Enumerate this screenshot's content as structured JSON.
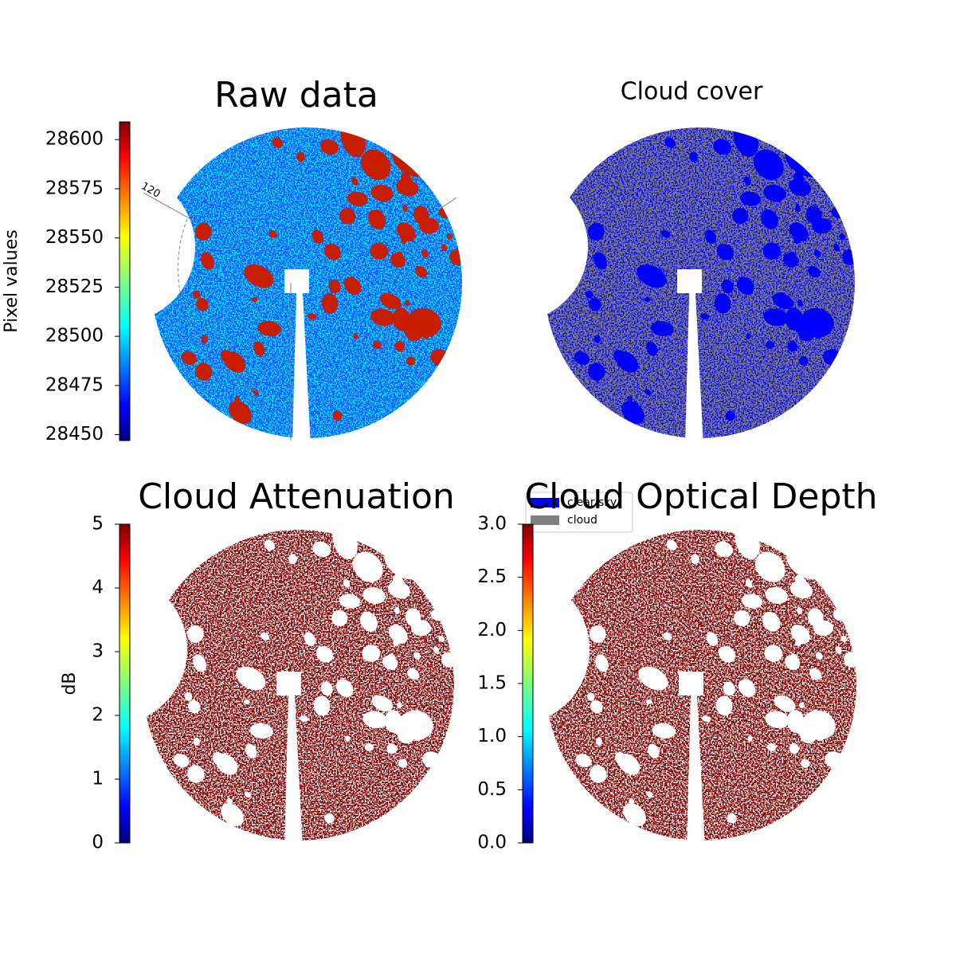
{
  "chart_data": [
    {
      "type": "image",
      "title": "Raw data",
      "annotations": [
        "120"
      ],
      "colorbar": {
        "label": "Pixel values",
        "ylim": [
          28447,
          28609
        ],
        "yticks": [
          28450,
          28475,
          28500,
          28525,
          28550,
          28575,
          28600
        ]
      }
    },
    {
      "type": "image",
      "title": "Cloud cover",
      "legend": {
        "entries": [
          {
            "name": "clear sky",
            "color": "#0000ff"
          },
          {
            "name": "cloud",
            "color": "#808080"
          }
        ]
      }
    },
    {
      "type": "image",
      "title": "Cloud Attenuation",
      "colorbar": {
        "label": "dB",
        "ylim": [
          0,
          5
        ],
        "yticks": [
          0,
          1,
          2,
          3,
          4,
          5
        ]
      }
    },
    {
      "type": "image",
      "title": "Cloud Optical Depth",
      "colorbar": {
        "ylim": [
          0,
          3
        ],
        "yticks": [
          {
            "value": 0,
            "label": "0.0"
          },
          0.5,
          {
            "value": 1,
            "label": "1.0"
          },
          1.5,
          {
            "value": 2,
            "label": "2.0"
          },
          2.5,
          {
            "value": 3,
            "label": "3.0"
          }
        ]
      }
    }
  ]
}
